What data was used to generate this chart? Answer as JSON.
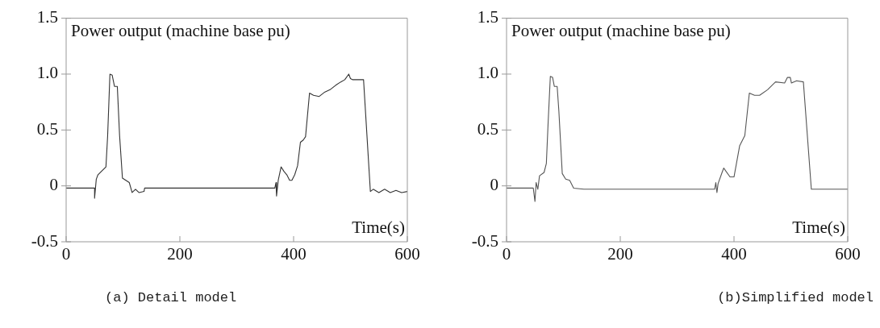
{
  "chart_data": [
    {
      "type": "line",
      "xlabel": "Time(s)",
      "ylabel": "Power output (machine base pu)",
      "annotations": [
        "(a) Detail model"
      ],
      "xlim": [
        0,
        600
      ],
      "xticks": [
        0,
        200,
        400,
        600
      ],
      "ylim": [
        -0.5,
        1.5
      ],
      "yticks": [
        {
          "value": -0.5,
          "label": "-0.5"
        },
        0,
        {
          "value": 0.5,
          "label": "0.5"
        },
        {
          "value": 1,
          "label": "1.0"
        },
        {
          "value": 1.5,
          "label": "1.5"
        }
      ],
      "grid": false,
      "legend": false,
      "series": [
        {
          "color": "#333333",
          "x": [
            0,
            50,
            50,
            53,
            56,
            62,
            70,
            73,
            77,
            81,
            85,
            90,
            94,
            99,
            105,
            111,
            116,
            122,
            128,
            137,
            138,
            367,
            369,
            370,
            373,
            378,
            383,
            388,
            393,
            397,
            402,
            407,
            412,
            417,
            421,
            428,
            435,
            445,
            455,
            464,
            474,
            483,
            490,
            497,
            500,
            504,
            515,
            523,
            535,
            540,
            550,
            560,
            570,
            580,
            590,
            600
          ],
          "values": [
            -0.02,
            -0.02,
            -0.11,
            0.06,
            0.1,
            0.13,
            0.17,
            0.45,
            1.0,
            0.99,
            0.89,
            0.89,
            0.45,
            0.07,
            0.05,
            0.03,
            -0.06,
            -0.03,
            -0.06,
            -0.05,
            -0.02,
            -0.02,
            0.03,
            -0.09,
            0.05,
            0.17,
            0.13,
            0.1,
            0.05,
            0.05,
            0.1,
            0.18,
            0.39,
            0.41,
            0.44,
            0.83,
            0.81,
            0.8,
            0.84,
            0.86,
            0.9,
            0.93,
            0.95,
            1.0,
            0.96,
            0.95,
            0.95,
            0.95,
            -0.05,
            -0.03,
            -0.06,
            -0.03,
            -0.06,
            -0.04,
            -0.06,
            -0.05
          ]
        }
      ]
    },
    {
      "type": "line",
      "xlabel": "Time(s)",
      "ylabel": "Power output (machine base pu)",
      "annotations": [
        "(b)Simplified model"
      ],
      "xlim": [
        0,
        600
      ],
      "xticks": [
        0,
        200,
        400,
        600
      ],
      "ylim": [
        -0.5,
        1.5
      ],
      "yticks": [
        {
          "value": -0.5,
          "label": "-0.5"
        },
        0,
        {
          "value": 0.5,
          "label": "0.5"
        },
        {
          "value": 1,
          "label": "1.0"
        },
        {
          "value": 1.5,
          "label": "1.5"
        }
      ],
      "grid": false,
      "legend": false,
      "series": [
        {
          "color": "#555555",
          "x": [
            0,
            47,
            50,
            52,
            55,
            58,
            66,
            70,
            73,
            77,
            81,
            84,
            89,
            92,
            98,
            104,
            111,
            118,
            136,
            366,
            368,
            370,
            372,
            379,
            382,
            386,
            393,
            400,
            410,
            419,
            427,
            436,
            445,
            459,
            473,
            489,
            494,
            499,
            501,
            510,
            522,
            536,
            600
          ],
          "values": [
            -0.02,
            -0.02,
            -0.14,
            0.03,
            -0.03,
            0.09,
            0.12,
            0.2,
            0.55,
            0.98,
            0.97,
            0.89,
            0.89,
            0.67,
            0.11,
            0.06,
            0.05,
            -0.02,
            -0.03,
            -0.03,
            0.03,
            -0.06,
            0.02,
            0.12,
            0.16,
            0.13,
            0.08,
            0.08,
            0.36,
            0.45,
            0.83,
            0.81,
            0.81,
            0.86,
            0.93,
            0.92,
            0.97,
            0.97,
            0.92,
            0.94,
            0.93,
            -0.03,
            -0.03
          ]
        }
      ]
    }
  ]
}
